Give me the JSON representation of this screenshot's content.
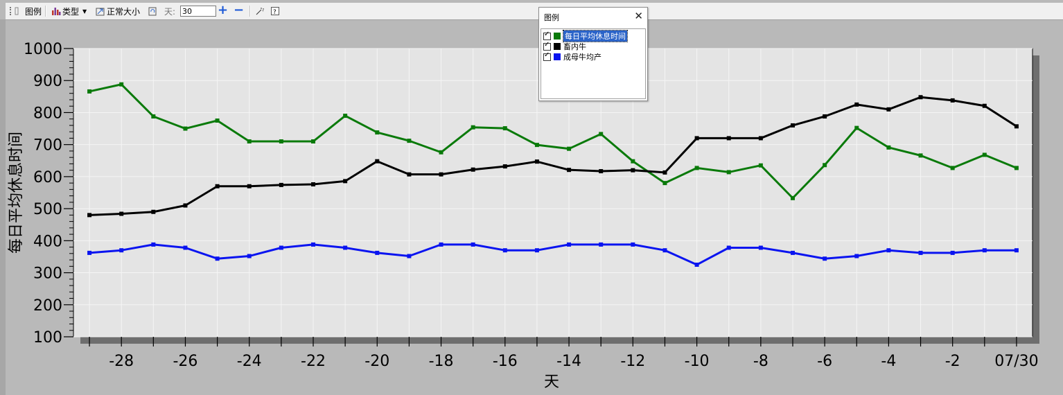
{
  "toolbar": {
    "legend_label": "图例",
    "type_label": "类型",
    "normal_size_label": "正常大小",
    "days_label": "天:",
    "days_value": "30",
    "plus": "+",
    "minus": "−"
  },
  "legend": {
    "title": "图例",
    "close": "✕",
    "items": [
      {
        "label": "每日平均休息时间",
        "color": "#0a7a0a",
        "checked": true,
        "selected": true
      },
      {
        "label": "畜内牛",
        "color": "#000000",
        "checked": true,
        "selected": false
      },
      {
        "label": "成母牛均产",
        "color": "#0a14f0",
        "checked": true,
        "selected": false
      }
    ]
  },
  "chart_data": {
    "type": "line",
    "xlabel": "天",
    "ylabel": "每日平均休息时间",
    "ylim": [
      100,
      1000
    ],
    "yticks": [
      100,
      200,
      300,
      400,
      500,
      600,
      700,
      800,
      900,
      1000
    ],
    "x": [
      -29,
      -28,
      -27,
      -26,
      -25,
      -24,
      -23,
      -22,
      -21,
      -20,
      -19,
      -18,
      -17,
      -16,
      -15,
      -14,
      -13,
      -12,
      -11,
      -10,
      -9,
      -8,
      -7,
      -6,
      -5,
      -4,
      -3,
      -2,
      -1,
      0
    ],
    "xtick_labels": [
      {
        "x": -28,
        "label": "-28"
      },
      {
        "x": -26,
        "label": "-26"
      },
      {
        "x": -24,
        "label": "-24"
      },
      {
        "x": -22,
        "label": "-22"
      },
      {
        "x": -20,
        "label": "-20"
      },
      {
        "x": -18,
        "label": "-18"
      },
      {
        "x": -16,
        "label": "-16"
      },
      {
        "x": -14,
        "label": "-14"
      },
      {
        "x": -12,
        "label": "-12"
      },
      {
        "x": -10,
        "label": "-10"
      },
      {
        "x": -8,
        "label": "-8"
      },
      {
        "x": -6,
        "label": "-6"
      },
      {
        "x": -4,
        "label": "-4"
      },
      {
        "x": -2,
        "label": "-2"
      },
      {
        "x": 0,
        "label": "07/30"
      }
    ],
    "grid": true,
    "series": [
      {
        "name": "每日平均休息时间",
        "color": "#0a7a0a",
        "values": [
          866,
          888,
          788,
          750,
          775,
          710,
          710,
          710,
          790,
          738,
          712,
          676,
          754,
          751,
          699,
          687,
          733,
          648,
          580,
          627,
          614,
          635,
          533,
          636,
          752,
          691,
          666,
          627,
          668,
          627
        ]
      },
      {
        "name": "畜内牛",
        "color": "#000000",
        "values": [
          480,
          484,
          490,
          510,
          570,
          570,
          574,
          576,
          586,
          648,
          607,
          607,
          622,
          632,
          647,
          621,
          617,
          620,
          613,
          720,
          720,
          720,
          760,
          788,
          825,
          810,
          848,
          838,
          821,
          757
        ]
      },
      {
        "name": "成母牛均产",
        "color": "#0a14f0",
        "values": [
          362,
          370,
          388,
          378,
          344,
          352,
          378,
          388,
          378,
          362,
          352,
          388,
          388,
          370,
          370,
          388,
          388,
          388,
          370,
          325,
          378,
          378,
          362,
          344,
          352,
          370,
          362,
          362,
          370,
          370
        ]
      }
    ]
  }
}
